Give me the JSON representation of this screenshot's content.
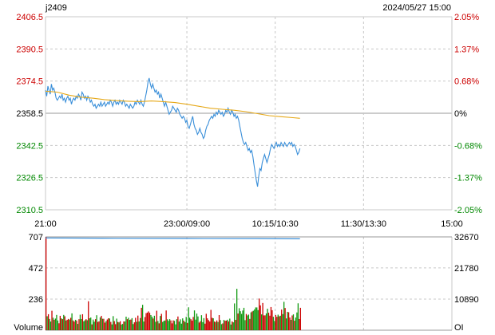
{
  "header": {
    "symbol": "j2409",
    "datetime": "2024/05/27 15:00"
  },
  "colors": {
    "up": "#cc0000",
    "down": "#008800",
    "neutral": "#000000",
    "price_line": "#3a8fd9",
    "avg_line": "#e6a817",
    "grid": "#c8c8c8",
    "volume_up": "#cc0000",
    "volume_down": "#119911",
    "oi_line": "#3a8fd9"
  },
  "chart_data": [
    {
      "type": "line",
      "panel": "price",
      "ylim": [
        2310.5,
        2406.5
      ],
      "left_ticks": [
        "2406.5",
        "2390.5",
        "2374.5",
        "2358.5",
        "2342.5",
        "2326.5",
        "2310.5"
      ],
      "right_ticks": [
        "2.05%",
        "1.37%",
        "0.68%",
        "0%",
        "-0.68%",
        "-1.37%",
        "-2.05%"
      ],
      "x_ticks": [
        "21:00",
        "23:00/09:00",
        "10:15/10:30",
        "11:30/13:30",
        "15:00"
      ],
      "x_tick_positions": [
        0,
        120,
        195,
        270,
        345
      ],
      "x_range": [
        0,
        345
      ],
      "series": [
        {
          "role": "price",
          "points": [
            [
              0,
              2370
            ],
            [
              1,
              2367
            ],
            [
              2,
              2372
            ],
            [
              3,
              2370
            ],
            [
              4,
              2368
            ],
            [
              5,
              2373
            ],
            [
              6,
              2370
            ],
            [
              7,
              2371
            ],
            [
              8,
              2369
            ],
            [
              9,
              2366
            ],
            [
              10,
              2365
            ],
            [
              11,
              2366
            ],
            [
              12,
              2367
            ],
            [
              13,
              2366
            ],
            [
              14,
              2368
            ],
            [
              15,
              2365
            ],
            [
              16,
              2366
            ],
            [
              17,
              2364
            ],
            [
              18,
              2366
            ],
            [
              19,
              2367
            ],
            [
              20,
              2365
            ],
            [
              21,
              2366
            ],
            [
              22,
              2363
            ],
            [
              23,
              2365
            ],
            [
              24,
              2366
            ],
            [
              25,
              2365
            ],
            [
              26,
              2367
            ],
            [
              27,
              2366
            ],
            [
              28,
              2368
            ],
            [
              29,
              2367
            ],
            [
              30,
              2365
            ],
            [
              31,
              2369
            ],
            [
              32,
              2368
            ],
            [
              33,
              2366
            ],
            [
              34,
              2367
            ],
            [
              35,
              2365
            ],
            [
              36,
              2367
            ],
            [
              37,
              2366
            ],
            [
              38,
              2364
            ],
            [
              39,
              2365
            ],
            [
              40,
              2363
            ],
            [
              41,
              2362
            ],
            [
              42,
              2363
            ],
            [
              43,
              2361
            ],
            [
              44,
              2362
            ],
            [
              45,
              2363
            ],
            [
              46,
              2362
            ],
            [
              47,
              2364
            ],
            [
              48,
              2362
            ],
            [
              49,
              2363
            ],
            [
              50,
              2364
            ],
            [
              51,
              2362
            ],
            [
              52,
              2363
            ],
            [
              53,
              2364
            ],
            [
              54,
              2363
            ],
            [
              55,
              2365
            ],
            [
              56,
              2364
            ],
            [
              57,
              2362
            ],
            [
              58,
              2364
            ],
            [
              59,
              2365
            ],
            [
              60,
              2363
            ],
            [
              61,
              2364
            ],
            [
              62,
              2363
            ],
            [
              63,
              2365
            ],
            [
              64,
              2364
            ],
            [
              65,
              2363
            ],
            [
              66,
              2365
            ],
            [
              67,
              2364
            ],
            [
              68,
              2362
            ],
            [
              69,
              2363
            ],
            [
              70,
              2362
            ],
            [
              71,
              2361
            ],
            [
              72,
              2363
            ],
            [
              73,
              2362
            ],
            [
              74,
              2361
            ],
            [
              75,
              2362
            ],
            [
              76,
              2364
            ],
            [
              77,
              2363
            ],
            [
              78,
              2365
            ],
            [
              79,
              2364
            ],
            [
              80,
              2363
            ],
            [
              81,
              2365
            ],
            [
              82,
              2363
            ],
            [
              83,
              2362
            ],
            [
              84,
              2364
            ],
            [
              85,
              2367
            ],
            [
              86,
              2370
            ],
            [
              87,
              2374
            ],
            [
              88,
              2376
            ],
            [
              89,
              2373
            ],
            [
              90,
              2371
            ],
            [
              91,
              2373
            ],
            [
              92,
              2371
            ],
            [
              93,
              2369
            ],
            [
              94,
              2370
            ],
            [
              95,
              2368
            ],
            [
              96,
              2369
            ],
            [
              97,
              2366
            ],
            [
              98,
              2368
            ],
            [
              99,
              2366
            ],
            [
              100,
              2364
            ],
            [
              101,
              2362
            ],
            [
              102,
              2364
            ],
            [
              103,
              2362
            ],
            [
              104,
              2360
            ],
            [
              105,
              2358
            ],
            [
              106,
              2359
            ],
            [
              107,
              2360
            ],
            [
              108,
              2362
            ],
            [
              109,
              2361
            ],
            [
              110,
              2360
            ],
            [
              111,
              2359
            ],
            [
              112,
              2361
            ],
            [
              113,
              2360
            ],
            [
              114,
              2358
            ],
            [
              115,
              2357
            ],
            [
              116,
              2356
            ],
            [
              117,
              2357
            ],
            [
              118,
              2356
            ],
            [
              119,
              2354
            ],
            [
              120,
              2355
            ],
            [
              121,
              2352
            ],
            [
              122,
              2351
            ],
            [
              123,
              2353
            ],
            [
              124,
              2355
            ],
            [
              125,
              2357
            ],
            [
              126,
              2353
            ],
            [
              127,
              2351
            ],
            [
              128,
              2350
            ],
            [
              129,
              2348
            ],
            [
              130,
              2349
            ],
            [
              131,
              2351
            ],
            [
              132,
              2349
            ],
            [
              133,
              2348
            ],
            [
              134,
              2346
            ],
            [
              135,
              2347
            ],
            [
              136,
              2350
            ],
            [
              137,
              2352
            ],
            [
              138,
              2353
            ],
            [
              139,
              2355
            ],
            [
              140,
              2356
            ],
            [
              141,
              2357
            ],
            [
              142,
              2356
            ],
            [
              143,
              2358
            ],
            [
              144,
              2357
            ],
            [
              145,
              2359
            ],
            [
              146,
              2358
            ],
            [
              147,
              2360
            ],
            [
              148,
              2359
            ],
            [
              149,
              2358
            ],
            [
              150,
              2359
            ],
            [
              151,
              2357
            ],
            [
              152,
              2358
            ],
            [
              153,
              2360
            ],
            [
              154,
              2359
            ],
            [
              155,
              2361
            ],
            [
              156,
              2359
            ],
            [
              157,
              2358
            ],
            [
              158,
              2360
            ],
            [
              159,
              2359
            ],
            [
              160,
              2357
            ],
            [
              161,
              2358
            ],
            [
              162,
              2356
            ],
            [
              163,
              2357
            ],
            [
              164,
              2355
            ],
            [
              165,
              2352
            ],
            [
              166,
              2349
            ],
            [
              167,
              2346
            ],
            [
              168,
              2344
            ],
            [
              169,
              2343
            ],
            [
              170,
              2344
            ],
            [
              171,
              2342
            ],
            [
              172,
              2340
            ],
            [
              173,
              2341
            ],
            [
              174,
              2339
            ],
            [
              175,
              2340
            ],
            [
              176,
              2337
            ],
            [
              177,
              2333
            ],
            [
              178,
              2329
            ],
            [
              179,
              2325
            ],
            [
              180,
              2322
            ],
            [
              181,
              2327
            ],
            [
              182,
              2331
            ],
            [
              183,
              2330
            ],
            [
              184,
              2334
            ],
            [
              185,
              2336
            ],
            [
              186,
              2338
            ],
            [
              187,
              2336
            ],
            [
              188,
              2334
            ],
            [
              189,
              2336
            ],
            [
              190,
              2338
            ],
            [
              191,
              2341
            ],
            [
              192,
              2343
            ],
            [
              193,
              2342
            ],
            [
              194,
              2341
            ],
            [
              195,
              2343
            ],
            [
              196,
              2344
            ],
            [
              197,
              2342
            ],
            [
              198,
              2343
            ],
            [
              199,
              2342
            ],
            [
              200,
              2344
            ],
            [
              201,
              2343
            ],
            [
              202,
              2342
            ],
            [
              203,
              2344
            ],
            [
              204,
              2343
            ],
            [
              205,
              2342
            ],
            [
              206,
              2343
            ],
            [
              207,
              2344
            ],
            [
              208,
              2343
            ],
            [
              209,
              2344
            ],
            [
              210,
              2342
            ],
            [
              211,
              2343
            ],
            [
              212,
              2342
            ],
            [
              213,
              2340
            ],
            [
              214,
              2338
            ],
            [
              215,
              2339
            ],
            [
              216,
              2341
            ]
          ]
        },
        {
          "role": "average",
          "points": [
            [
              0,
              2369.5
            ],
            [
              10,
              2369.0
            ],
            [
              20,
              2367.5
            ],
            [
              30,
              2366.5
            ],
            [
              40,
              2366.0
            ],
            [
              50,
              2365.3
            ],
            [
              60,
              2364.8
            ],
            [
              70,
              2364.5
            ],
            [
              80,
              2364.3
            ],
            [
              90,
              2364.6
            ],
            [
              100,
              2364.3
            ],
            [
              110,
              2363.8
            ],
            [
              120,
              2363.0
            ],
            [
              130,
              2362.0
            ],
            [
              140,
              2361.0
            ],
            [
              150,
              2360.5
            ],
            [
              160,
              2360.0
            ],
            [
              170,
              2359.3
            ],
            [
              180,
              2358.3
            ],
            [
              190,
              2357.3
            ],
            [
              200,
              2356.8
            ],
            [
              210,
              2356.3
            ],
            [
              216,
              2356.0
            ]
          ]
        }
      ]
    },
    {
      "type": "bar",
      "panel": "volume",
      "left_ticks": [
        "707",
        "472",
        "236"
      ],
      "right_ticks": [
        "32670",
        "21780",
        "10890"
      ],
      "left_label": "Volume",
      "right_label": "OI",
      "vol_max": 707,
      "oi_range": [
        0,
        32670
      ],
      "oi_series": {
        "points": [
          [
            0,
            32300
          ],
          [
            60,
            32200
          ],
          [
            120,
            32150
          ],
          [
            180,
            32100
          ],
          [
            216,
            32000
          ]
        ]
      }
    }
  ]
}
